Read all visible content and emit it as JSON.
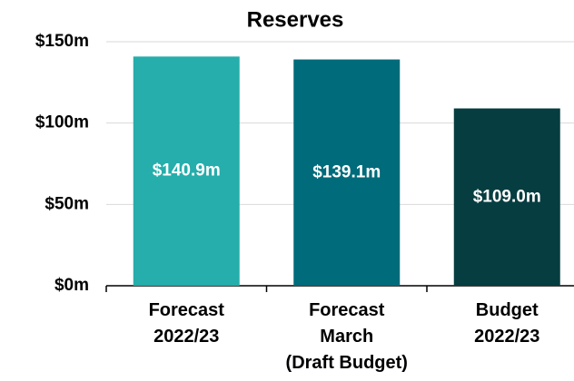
{
  "chart_data": {
    "type": "bar",
    "title": "Reserves",
    "categories": [
      "Forecast\n2022/23",
      "Forecast\nMarch\n(Draft Budget)",
      "Budget\n2022/23"
    ],
    "values": [
      140.9,
      139.1,
      109.0
    ],
    "value_labels": [
      "$140.9m",
      "$139.1m",
      "$109.0m"
    ],
    "colors": [
      "#25aeab",
      "#006b7a",
      "#063d40"
    ],
    "ylim": [
      0,
      150
    ],
    "yticks": [
      {
        "value": 0,
        "label": "$0m"
      },
      {
        "value": 50,
        "label": "$50m"
      },
      {
        "value": 100,
        "label": "$100m"
      },
      {
        "value": 150,
        "label": "$150m"
      }
    ],
    "grid": true
  }
}
